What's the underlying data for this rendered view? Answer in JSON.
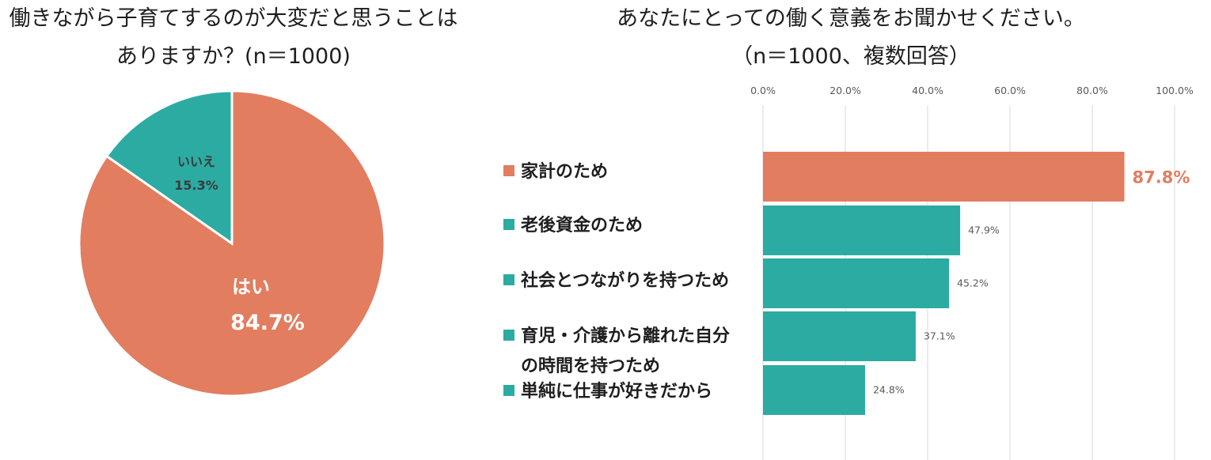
{
  "chart_data": [
    {
      "type": "pie",
      "title_line1": "働きながら子育てするのが大変だと思うことは",
      "title_line2": "ありますか？(n＝1000)",
      "slices": [
        {
          "label": "はい",
          "value": 84.7,
          "value_label": "84.7%",
          "color": "#E27D60"
        },
        {
          "label": "いいえ",
          "value": 15.3,
          "value_label": "15.3%",
          "color": "#2CABA3"
        }
      ]
    },
    {
      "type": "bar",
      "orientation": "horizontal",
      "title_line1": "あなたにとっての働く意義をお聞かせください。",
      "title_line2": "（n＝1000、複数回答）",
      "xlim": [
        0,
        100
      ],
      "ticks": [
        0,
        20,
        40,
        60,
        80,
        100
      ],
      "tick_labels": [
        "0.0%",
        "20.0%",
        "40.0%",
        "60.0%",
        "80.0%",
        "100.0%"
      ],
      "grid": true,
      "categories": [
        {
          "label": "家計のため",
          "label_line2": "",
          "value": 87.8,
          "value_label": "87.8%",
          "color": "#E27D60",
          "highlight": true
        },
        {
          "label": "老後資金のため",
          "label_line2": "",
          "value": 47.9,
          "value_label": "47.9%",
          "color": "#2CABA3",
          "highlight": false
        },
        {
          "label": "社会とつながりを持つため",
          "label_line2": "",
          "value": 45.2,
          "value_label": "45.2%",
          "color": "#2CABA3",
          "highlight": false
        },
        {
          "label": "育児・介護から離れた自分",
          "label_line2": "の時間を持つため",
          "value": 37.1,
          "value_label": "37.1%",
          "color": "#2CABA3",
          "highlight": false
        },
        {
          "label": "単純に仕事が好きだから",
          "label_line2": "",
          "value": 24.8,
          "value_label": "24.8%",
          "color": "#2CABA3",
          "highlight": false
        }
      ]
    }
  ]
}
